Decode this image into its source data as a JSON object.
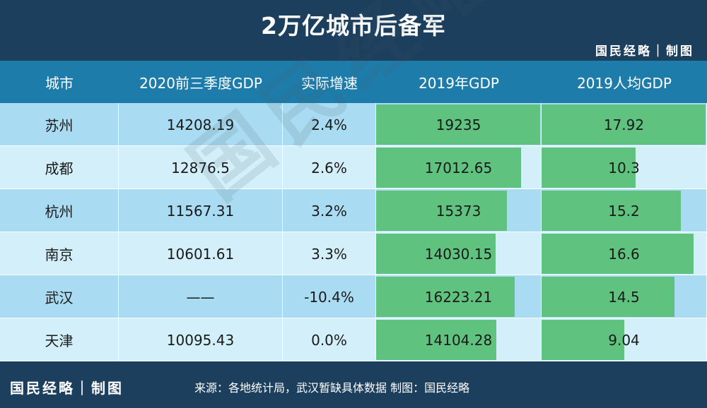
{
  "title": "2万亿城市后备军",
  "brand": "国民经略｜制图",
  "watermark": "国民经略",
  "footer_source": "来源：各地统计局，武汉暂缺具体数据  制图：国民经略",
  "colors": {
    "header": "#1e7cab",
    "background": "#1c3f5e",
    "bar": "#5fc27f",
    "row_odd": "#a9dcf2",
    "row_even": "#d3eff9"
  },
  "chart_data": {
    "type": "table",
    "columns": [
      "城市",
      "2020前三季度GDP",
      "实际增速",
      "2019年GDP",
      "2019人均GDP"
    ],
    "rows": [
      {
        "city": "苏州",
        "gdp2020q3": "14208.19",
        "growth": "2.4%",
        "gdp2019": "19235",
        "gdp2019_value": 19235,
        "per_capita": "17.92",
        "per_capita_value": 17.92
      },
      {
        "city": "成都",
        "gdp2020q3": "12876.5",
        "growth": "2.6%",
        "gdp2019": "17012.65",
        "gdp2019_value": 17012.65,
        "per_capita": "10.3",
        "per_capita_value": 10.3
      },
      {
        "city": "杭州",
        "gdp2020q3": "11567.31",
        "growth": "3.2%",
        "gdp2019": "15373",
        "gdp2019_value": 15373,
        "per_capita": "15.2",
        "per_capita_value": 15.2
      },
      {
        "city": "南京",
        "gdp2020q3": "10601.61",
        "growth": "3.3%",
        "gdp2019": "14030.15",
        "gdp2019_value": 14030.15,
        "per_capita": "16.6",
        "per_capita_value": 16.6
      },
      {
        "city": "武汉",
        "gdp2020q3": "——",
        "growth": "-10.4%",
        "gdp2019": "16223.21",
        "gdp2019_value": 16223.21,
        "per_capita": "14.5",
        "per_capita_value": 14.5
      },
      {
        "city": "天津",
        "gdp2020q3": "10095.43",
        "growth": "0.0%",
        "gdp2019": "14104.28",
        "gdp2019_value": 14104.28,
        "per_capita": "9.04",
        "per_capita_value": 9.04
      }
    ]
  }
}
